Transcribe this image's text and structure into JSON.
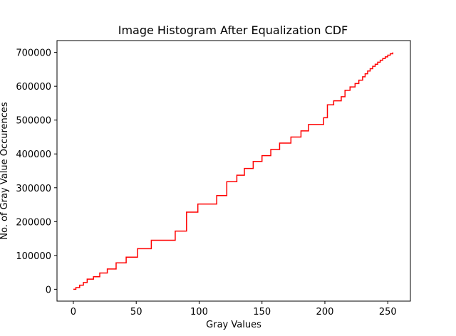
{
  "chart_data": {
    "type": "line",
    "step": true,
    "title": "Image Histogram After Equalization CDF",
    "xlabel": "Gray Values",
    "ylabel": "No. of Gray Value Occurences",
    "xlim": [
      -13,
      268
    ],
    "ylim": [
      -35000,
      735000
    ],
    "xticks": [
      0,
      50,
      100,
      150,
      200,
      250
    ],
    "yticks": [
      0,
      100000,
      200000,
      300000,
      400000,
      500000,
      600000,
      700000
    ],
    "grid": false,
    "legend": "none",
    "colors": {
      "series": "#ff0000",
      "axes": "#000000",
      "background": "#ffffff"
    },
    "series": [
      {
        "x": [
          0,
          2,
          5,
          8,
          11,
          16,
          21,
          27,
          34,
          42,
          51,
          62,
          81,
          90,
          99,
          114,
          122,
          130,
          136,
          143,
          150,
          157,
          164,
          173,
          181,
          187,
          199,
          202,
          207,
          213,
          216,
          220,
          224,
          227,
          230,
          232,
          234,
          236,
          238,
          240,
          242,
          244,
          246,
          248,
          250,
          252,
          254
        ],
        "values": [
          0,
          5000,
          12000,
          20000,
          30000,
          37000,
          48000,
          60000,
          78000,
          95000,
          120000,
          145000,
          172000,
          228000,
          252000,
          277000,
          318000,
          337000,
          357000,
          378000,
          395000,
          413000,
          432000,
          450000,
          468000,
          487000,
          507000,
          545000,
          557000,
          569000,
          588000,
          598000,
          608000,
          618000,
          628000,
          637000,
          645000,
          652000,
          659000,
          665000,
          671000,
          677000,
          682000,
          687000,
          692000,
          696000,
          700000
        ]
      }
    ]
  }
}
